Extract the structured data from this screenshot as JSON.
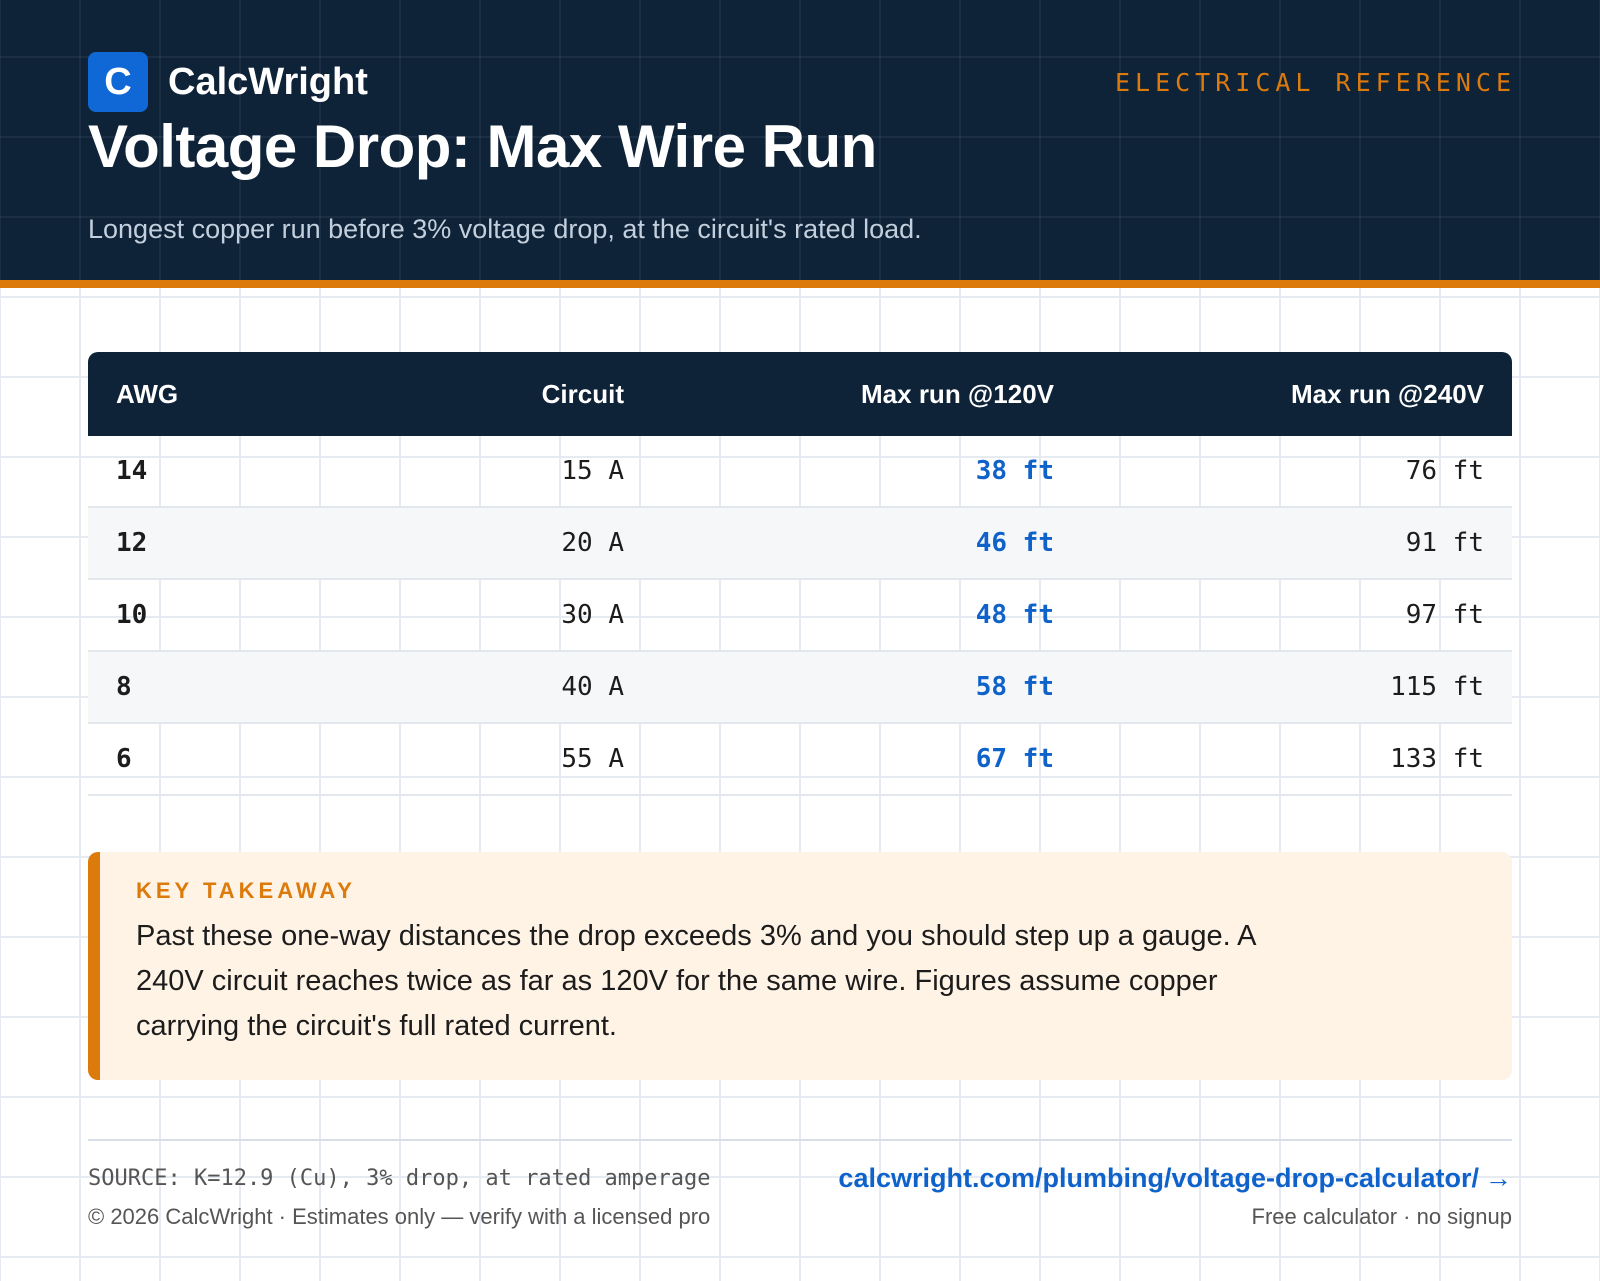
{
  "header": {
    "logo_letter": "C",
    "brand": "CalcWright",
    "kicker": "ELECTRICAL REFERENCE",
    "title": "Voltage Drop: Max Wire Run",
    "subtitle": "Longest copper run before 3% voltage drop, at the circuit's rated load."
  },
  "table": {
    "headers": [
      "AWG",
      "Circuit",
      "Max run @120V",
      "Max run @240V"
    ],
    "rows": [
      {
        "awg": "14",
        "circuit": "15 A",
        "run120": "38 ft",
        "run240": "76 ft"
      },
      {
        "awg": "12",
        "circuit": "20 A",
        "run120": "46 ft",
        "run240": "91 ft"
      },
      {
        "awg": "10",
        "circuit": "30 A",
        "run120": "48 ft",
        "run240": "97 ft"
      },
      {
        "awg": "8",
        "circuit": "40 A",
        "run120": "58 ft",
        "run240": "115 ft"
      },
      {
        "awg": "6",
        "circuit": "55 A",
        "run120": "67 ft",
        "run240": "133 ft"
      }
    ]
  },
  "callout": {
    "label": "KEY TAKEAWAY",
    "text": "Past these one-way distances the drop exceeds 3% and you should step up a gauge. A 240V circuit reaches twice as far as 120V for the same wire. Figures assume copper carrying the circuit's full rated current."
  },
  "footer": {
    "source": "SOURCE: K=12.9 (Cu), 3% drop, at rated amperage",
    "copyright": "© 2026 CalcWright · Estimates only — verify with a licensed pro",
    "link": "calcwright.com/plumbing/voltage-drop-calculator/",
    "arrow": "→",
    "note": "Free calculator · no signup"
  },
  "colors": {
    "navy": "#0e2238",
    "accent_orange": "#dc7a0c",
    "link_blue": "#0f62c9",
    "callout_bg": "#fff3e5"
  }
}
